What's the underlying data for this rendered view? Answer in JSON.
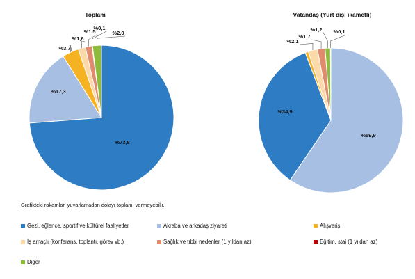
{
  "note": "Grafikteki rakamlar, yuvarlamadan dolayı toplamı vermeyebilir.",
  "legend": [
    {
      "label": "Gezi, eğlence, sportif ve kültürel faaliyetler",
      "color": "#2e7cc4"
    },
    {
      "label": "Akraba ve arkadaş ziyareti",
      "color": "#a6bfe3"
    },
    {
      "label": "Alışveriş",
      "color": "#f5b324"
    },
    {
      "label": "İş amaçlı (konferans, toplantı, görev vb.)",
      "color": "#fcd9a8"
    },
    {
      "label": "Sağlık ve tıbbi nedenler (1 yıldan az)",
      "color": "#e08a6e"
    },
    {
      "label": "Eğitim, staj (1 yıldan az)",
      "color": "#c00000"
    },
    {
      "label": "Diğer",
      "color": "#8dbb3c"
    }
  ],
  "chart_data": [
    {
      "type": "pie",
      "title": "Toplam",
      "categories": [
        "Gezi, eğlence, sportif ve kültürel faaliyetler",
        "Akraba ve arkadaş ziyareti",
        "Alışveriş",
        "İş amaçlı (konferans, toplantı, görev vb.)",
        "Sağlık ve tıbbi nedenler (1 yıldan az)",
        "Eğitim, staj (1 yıldan az)",
        "Diğer"
      ],
      "values": [
        73.8,
        17.3,
        3.7,
        1.6,
        1.5,
        0.1,
        2.0
      ],
      "labels": [
        "%73,8",
        "%17,3",
        "%3,7",
        "%1,6",
        "%1,5",
        "%0,1",
        "%2,0"
      ]
    },
    {
      "type": "pie",
      "title": "Vatandaş (Yurt dışı ikametli)",
      "categories": [
        "Gezi, eğlence, sportif ve kültürel faaliyetler",
        "Akraba ve arkadaş ziyareti",
        "Alışveriş",
        "İş amaçlı (konferans, toplantı, görev vb.)",
        "Sağlık ve tıbbi nedenler (1 yıldan az)",
        "Eğitim, staj (1 yıldan az)",
        "Diğer"
      ],
      "values": [
        34.9,
        59.9,
        0.7,
        2.1,
        1.7,
        0.1,
        1.2
      ],
      "labels": [
        "%34,9",
        "%59,9",
        "",
        "%2,1",
        "%1,7",
        "%0,1",
        "%1,2"
      ]
    }
  ]
}
